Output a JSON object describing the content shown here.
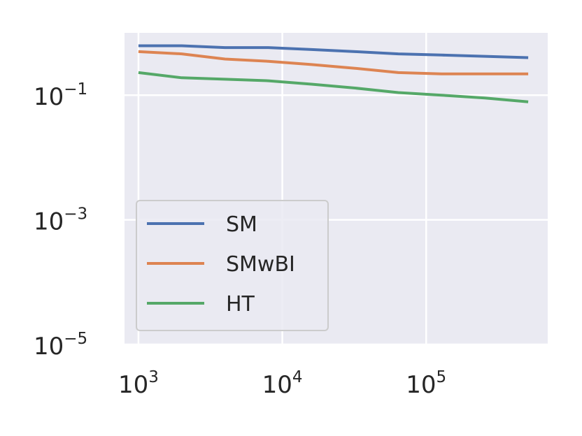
{
  "chart_data": {
    "type": "line",
    "xscale": "log",
    "yscale": "log",
    "xlim": [
      800,
      700000
    ],
    "ylim": [
      1e-05,
      1
    ],
    "grid": true,
    "legend": {
      "position": "lower-left"
    },
    "x_ticks": [
      {
        "value": 1000,
        "base": "10",
        "exp": "3"
      },
      {
        "value": 10000,
        "base": "10",
        "exp": "4"
      },
      {
        "value": 100000,
        "base": "10",
        "exp": "5"
      }
    ],
    "y_ticks": [
      {
        "value": 0.1,
        "base": "10",
        "exp": "−1"
      },
      {
        "value": 0.001,
        "base": "10",
        "exp": "−3"
      },
      {
        "value": 1e-05,
        "base": "10",
        "exp": "−5"
      }
    ],
    "series": [
      {
        "name": "SM",
        "color": "#4c72b0",
        "x": [
          1000,
          2000,
          4000,
          8000,
          16000,
          32000,
          64000,
          128000,
          256000,
          512000
        ],
        "y": [
          0.62,
          0.62,
          0.58,
          0.58,
          0.54,
          0.5,
          0.46,
          0.44,
          0.42,
          0.4
        ]
      },
      {
        "name": "SMwBI",
        "color": "#dd8452",
        "x": [
          1000,
          2000,
          4000,
          8000,
          16000,
          32000,
          64000,
          128000,
          256000,
          512000
        ],
        "y": [
          0.5,
          0.46,
          0.38,
          0.35,
          0.31,
          0.27,
          0.23,
          0.22,
          0.22,
          0.22
        ]
      },
      {
        "name": "HT",
        "color": "#55a868",
        "x": [
          1000,
          2000,
          4000,
          8000,
          16000,
          32000,
          64000,
          128000,
          256000,
          512000
        ],
        "y": [
          0.23,
          0.19,
          0.18,
          0.17,
          0.15,
          0.13,
          0.11,
          0.1,
          0.09,
          0.078
        ]
      }
    ]
  }
}
